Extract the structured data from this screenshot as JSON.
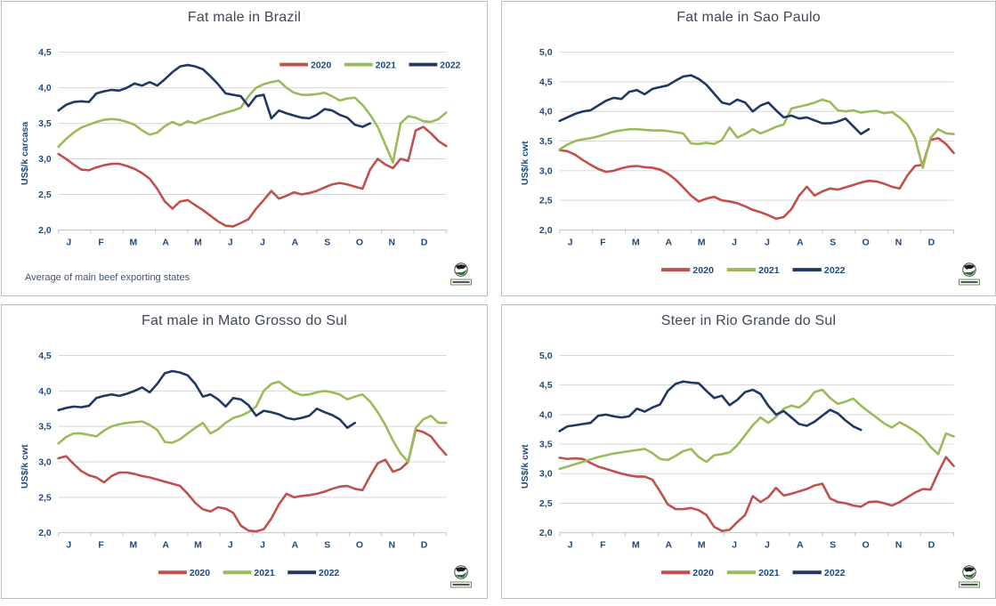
{
  "palette": {
    "series_2020": "#C0504D",
    "series_2021": "#9BBB59",
    "series_2022": "#1F3864",
    "gridline": "#d6d6d6",
    "axis_line": "#c2c2c2",
    "tick_text": "#1F497D",
    "title_text": "#3F4756"
  },
  "legend_labels": [
    "2020",
    "2021",
    "2022"
  ],
  "logo_name": "globe-logo",
  "chart_data": [
    {
      "type": "line",
      "title": "Fat male in Brazil",
      "ylabel": "US$/k carcasa",
      "ylim": [
        2.0,
        4.5
      ],
      "ytick_step": 0.5,
      "ytick_labels": [
        "2,0",
        "2,5",
        "3,0",
        "3,5",
        "4,0",
        "4,5"
      ],
      "x_months": [
        "J",
        "F",
        "M",
        "A",
        "M",
        "J",
        "J",
        "A",
        "S",
        "O",
        "N",
        "D"
      ],
      "grid": true,
      "legend_position": "top-right",
      "footnote": "Average  of main beef exporting states",
      "series": [
        {
          "name": "2020",
          "color": "#C0504D",
          "values": [
            3.07,
            3.0,
            2.92,
            2.85,
            2.84,
            2.88,
            2.91,
            2.93,
            2.93,
            2.9,
            2.86,
            2.8,
            2.72,
            2.58,
            2.4,
            2.3,
            2.4,
            2.42,
            2.35,
            2.28,
            2.2,
            2.12,
            2.06,
            2.05,
            2.1,
            2.15,
            2.3,
            2.42,
            2.55,
            2.44,
            2.48,
            2.53,
            2.5,
            2.52,
            2.55,
            2.6,
            2.64,
            2.66,
            2.64,
            2.61,
            2.58,
            2.85,
            3.0,
            2.92,
            2.87,
            3.0,
            2.97,
            3.4,
            3.45,
            3.36,
            3.25,
            3.18
          ]
        },
        {
          "name": "2021",
          "color": "#9BBB59",
          "values": [
            3.17,
            3.28,
            3.37,
            3.44,
            3.48,
            3.52,
            3.55,
            3.56,
            3.55,
            3.52,
            3.48,
            3.4,
            3.34,
            3.37,
            3.46,
            3.52,
            3.47,
            3.53,
            3.5,
            3.55,
            3.58,
            3.62,
            3.65,
            3.68,
            3.72,
            3.88,
            4.0,
            4.05,
            4.08,
            4.1,
            4.0,
            3.93,
            3.9,
            3.9,
            3.91,
            3.93,
            3.88,
            3.82,
            3.85,
            3.86,
            3.76,
            3.62,
            3.45,
            3.2,
            2.95,
            3.5,
            3.6,
            3.58,
            3.53,
            3.52,
            3.56,
            3.65
          ]
        },
        {
          "name": "2022",
          "color": "#1F3864",
          "values": [
            3.68,
            3.76,
            3.8,
            3.81,
            3.8,
            3.92,
            3.95,
            3.97,
            3.96,
            4.0,
            4.06,
            4.03,
            4.08,
            4.03,
            4.12,
            4.22,
            4.3,
            4.32,
            4.3,
            4.26,
            4.16,
            4.05,
            3.92,
            3.9,
            3.88,
            3.74,
            3.88,
            3.9,
            3.57,
            3.68,
            3.64,
            3.61,
            3.58,
            3.57,
            3.62,
            3.7,
            3.68,
            3.62,
            3.58,
            3.48,
            3.45,
            3.5
          ]
        }
      ]
    },
    {
      "type": "line",
      "title": "Fat male in Sao Paulo",
      "ylabel": "US$/k cwt",
      "ylim": [
        2.0,
        5.0
      ],
      "ytick_step": 0.5,
      "ytick_labels": [
        "2,0",
        "2,5",
        "3,0",
        "3,5",
        "4,0",
        "4,5",
        "5,0"
      ],
      "x_months": [
        "J",
        "F",
        "M",
        "A",
        "M",
        "J",
        "J",
        "A",
        "S",
        "O",
        "N",
        "D"
      ],
      "grid": true,
      "legend_position": "bottom",
      "series": [
        {
          "name": "2020",
          "color": "#C0504D",
          "values": [
            3.35,
            3.33,
            3.27,
            3.18,
            3.1,
            3.03,
            2.98,
            3.0,
            3.04,
            3.07,
            3.08,
            3.06,
            3.05,
            3.02,
            2.95,
            2.85,
            2.72,
            2.58,
            2.48,
            2.53,
            2.56,
            2.5,
            2.48,
            2.45,
            2.4,
            2.34,
            2.3,
            2.25,
            2.19,
            2.22,
            2.35,
            2.58,
            2.73,
            2.58,
            2.65,
            2.7,
            2.68,
            2.72,
            2.76,
            2.8,
            2.83,
            2.82,
            2.78,
            2.73,
            2.7,
            2.92,
            3.08,
            3.1,
            3.52,
            3.55,
            3.45,
            3.3
          ]
        },
        {
          "name": "2021",
          "color": "#9BBB59",
          "values": [
            3.36,
            3.44,
            3.5,
            3.53,
            3.55,
            3.58,
            3.62,
            3.66,
            3.68,
            3.7,
            3.7,
            3.69,
            3.68,
            3.68,
            3.67,
            3.65,
            3.63,
            3.46,
            3.45,
            3.47,
            3.45,
            3.52,
            3.73,
            3.56,
            3.62,
            3.7,
            3.63,
            3.68,
            3.74,
            3.78,
            4.05,
            4.08,
            4.11,
            4.15,
            4.2,
            4.16,
            4.02,
            4.0,
            4.02,
            3.98,
            4.0,
            4.01,
            3.97,
            3.99,
            3.9,
            3.78,
            3.55,
            3.05,
            3.55,
            3.7,
            3.63,
            3.62
          ]
        },
        {
          "name": "2022",
          "color": "#1F3864",
          "values": [
            3.84,
            3.9,
            3.96,
            4.0,
            4.02,
            4.1,
            4.18,
            4.23,
            4.21,
            4.33,
            4.36,
            4.29,
            4.38,
            4.41,
            4.44,
            4.52,
            4.59,
            4.61,
            4.55,
            4.45,
            4.3,
            4.15,
            4.12,
            4.2,
            4.15,
            4.0,
            4.1,
            4.15,
            4.02,
            3.9,
            3.93,
            3.88,
            3.9,
            3.85,
            3.8,
            3.8,
            3.83,
            3.88,
            3.75,
            3.62,
            3.7
          ]
        }
      ]
    },
    {
      "type": "line",
      "title": "Fat male in Mato Grosso do Sul",
      "ylabel": "US$/k cwt",
      "ylim": [
        2.0,
        4.5
      ],
      "ytick_step": 0.5,
      "ytick_labels": [
        "2,0",
        "2,5",
        "3,0",
        "3,5",
        "4,0",
        "4,5"
      ],
      "x_months": [
        "J",
        "F",
        "M",
        "A",
        "M",
        "J",
        "J",
        "A",
        "S",
        "O",
        "N",
        "D"
      ],
      "grid": true,
      "legend_position": "bottom",
      "series": [
        {
          "name": "2020",
          "color": "#C0504D",
          "values": [
            3.05,
            3.08,
            2.97,
            2.87,
            2.81,
            2.78,
            2.71,
            2.8,
            2.85,
            2.85,
            2.83,
            2.8,
            2.78,
            2.75,
            2.72,
            2.69,
            2.66,
            2.55,
            2.42,
            2.33,
            2.3,
            2.36,
            2.34,
            2.28,
            2.1,
            2.03,
            2.02,
            2.05,
            2.2,
            2.4,
            2.55,
            2.5,
            2.52,
            2.53,
            2.55,
            2.58,
            2.62,
            2.65,
            2.66,
            2.62,
            2.6,
            2.8,
            2.98,
            3.03,
            2.86,
            2.9,
            3.0,
            3.45,
            3.42,
            3.36,
            3.22,
            3.1
          ]
        },
        {
          "name": "2021",
          "color": "#9BBB59",
          "values": [
            3.26,
            3.35,
            3.4,
            3.4,
            3.38,
            3.36,
            3.44,
            3.5,
            3.53,
            3.55,
            3.56,
            3.57,
            3.52,
            3.45,
            3.28,
            3.27,
            3.32,
            3.4,
            3.48,
            3.55,
            3.4,
            3.46,
            3.55,
            3.62,
            3.65,
            3.7,
            3.78,
            4.0,
            4.1,
            4.13,
            4.05,
            3.98,
            3.94,
            3.95,
            3.98,
            4.0,
            3.98,
            3.95,
            3.88,
            3.92,
            3.95,
            3.85,
            3.7,
            3.52,
            3.3,
            3.12,
            3.0,
            3.48,
            3.6,
            3.65,
            3.55,
            3.55
          ]
        },
        {
          "name": "2022",
          "color": "#1F3864",
          "values": [
            3.73,
            3.76,
            3.78,
            3.77,
            3.79,
            3.9,
            3.93,
            3.95,
            3.93,
            3.96,
            4.0,
            4.05,
            3.98,
            4.1,
            4.25,
            4.28,
            4.26,
            4.22,
            4.1,
            3.92,
            3.95,
            3.88,
            3.78,
            3.9,
            3.88,
            3.8,
            3.65,
            3.72,
            3.7,
            3.67,
            3.62,
            3.6,
            3.62,
            3.65,
            3.75,
            3.7,
            3.66,
            3.6,
            3.48,
            3.55
          ]
        }
      ]
    },
    {
      "type": "line",
      "title": "Steer  in Rio Grande do Sul",
      "ylabel": "US$/k cwt",
      "ylim": [
        2.0,
        5.0
      ],
      "ytick_step": 0.5,
      "ytick_labels": [
        "2,0",
        "2,5",
        "3,0",
        "3,5",
        "4,0",
        "4,5",
        "5,0"
      ],
      "x_months": [
        "J",
        "F",
        "M",
        "A",
        "M",
        "J",
        "J",
        "A",
        "S",
        "O",
        "N",
        "D"
      ],
      "grid": true,
      "legend_position": "bottom",
      "series": [
        {
          "name": "2020",
          "color": "#C0504D",
          "values": [
            3.27,
            3.25,
            3.26,
            3.25,
            3.18,
            3.12,
            3.08,
            3.04,
            3.0,
            2.97,
            2.95,
            2.95,
            2.9,
            2.7,
            2.48,
            2.4,
            2.4,
            2.42,
            2.38,
            2.3,
            2.1,
            2.03,
            2.05,
            2.18,
            2.3,
            2.62,
            2.52,
            2.6,
            2.76,
            2.63,
            2.66,
            2.7,
            2.74,
            2.8,
            2.83,
            2.58,
            2.52,
            2.5,
            2.46,
            2.44,
            2.52,
            2.53,
            2.5,
            2.46,
            2.52,
            2.6,
            2.68,
            2.74,
            2.73,
            3.02,
            3.28,
            3.13
          ]
        },
        {
          "name": "2021",
          "color": "#9BBB59",
          "values": [
            3.08,
            3.12,
            3.16,
            3.2,
            3.24,
            3.28,
            3.31,
            3.34,
            3.36,
            3.38,
            3.4,
            3.42,
            3.35,
            3.25,
            3.23,
            3.3,
            3.38,
            3.42,
            3.28,
            3.2,
            3.31,
            3.33,
            3.36,
            3.48,
            3.65,
            3.82,
            3.95,
            3.86,
            3.96,
            4.1,
            4.15,
            4.12,
            4.22,
            4.38,
            4.42,
            4.28,
            4.18,
            4.22,
            4.27,
            4.15,
            4.05,
            3.95,
            3.85,
            3.78,
            3.87,
            3.8,
            3.72,
            3.62,
            3.45,
            3.33,
            3.68,
            3.63
          ]
        },
        {
          "name": "2022",
          "color": "#1F3864",
          "values": [
            3.72,
            3.8,
            3.82,
            3.84,
            3.86,
            3.98,
            4.0,
            3.97,
            3.95,
            3.97,
            4.1,
            4.05,
            4.12,
            4.17,
            4.4,
            4.52,
            4.56,
            4.54,
            4.53,
            4.4,
            4.28,
            4.32,
            4.16,
            4.25,
            4.38,
            4.42,
            4.35,
            4.15,
            4.0,
            4.06,
            3.95,
            3.84,
            3.81,
            3.88,
            3.98,
            4.08,
            4.02,
            3.9,
            3.8,
            3.74
          ]
        }
      ]
    }
  ]
}
